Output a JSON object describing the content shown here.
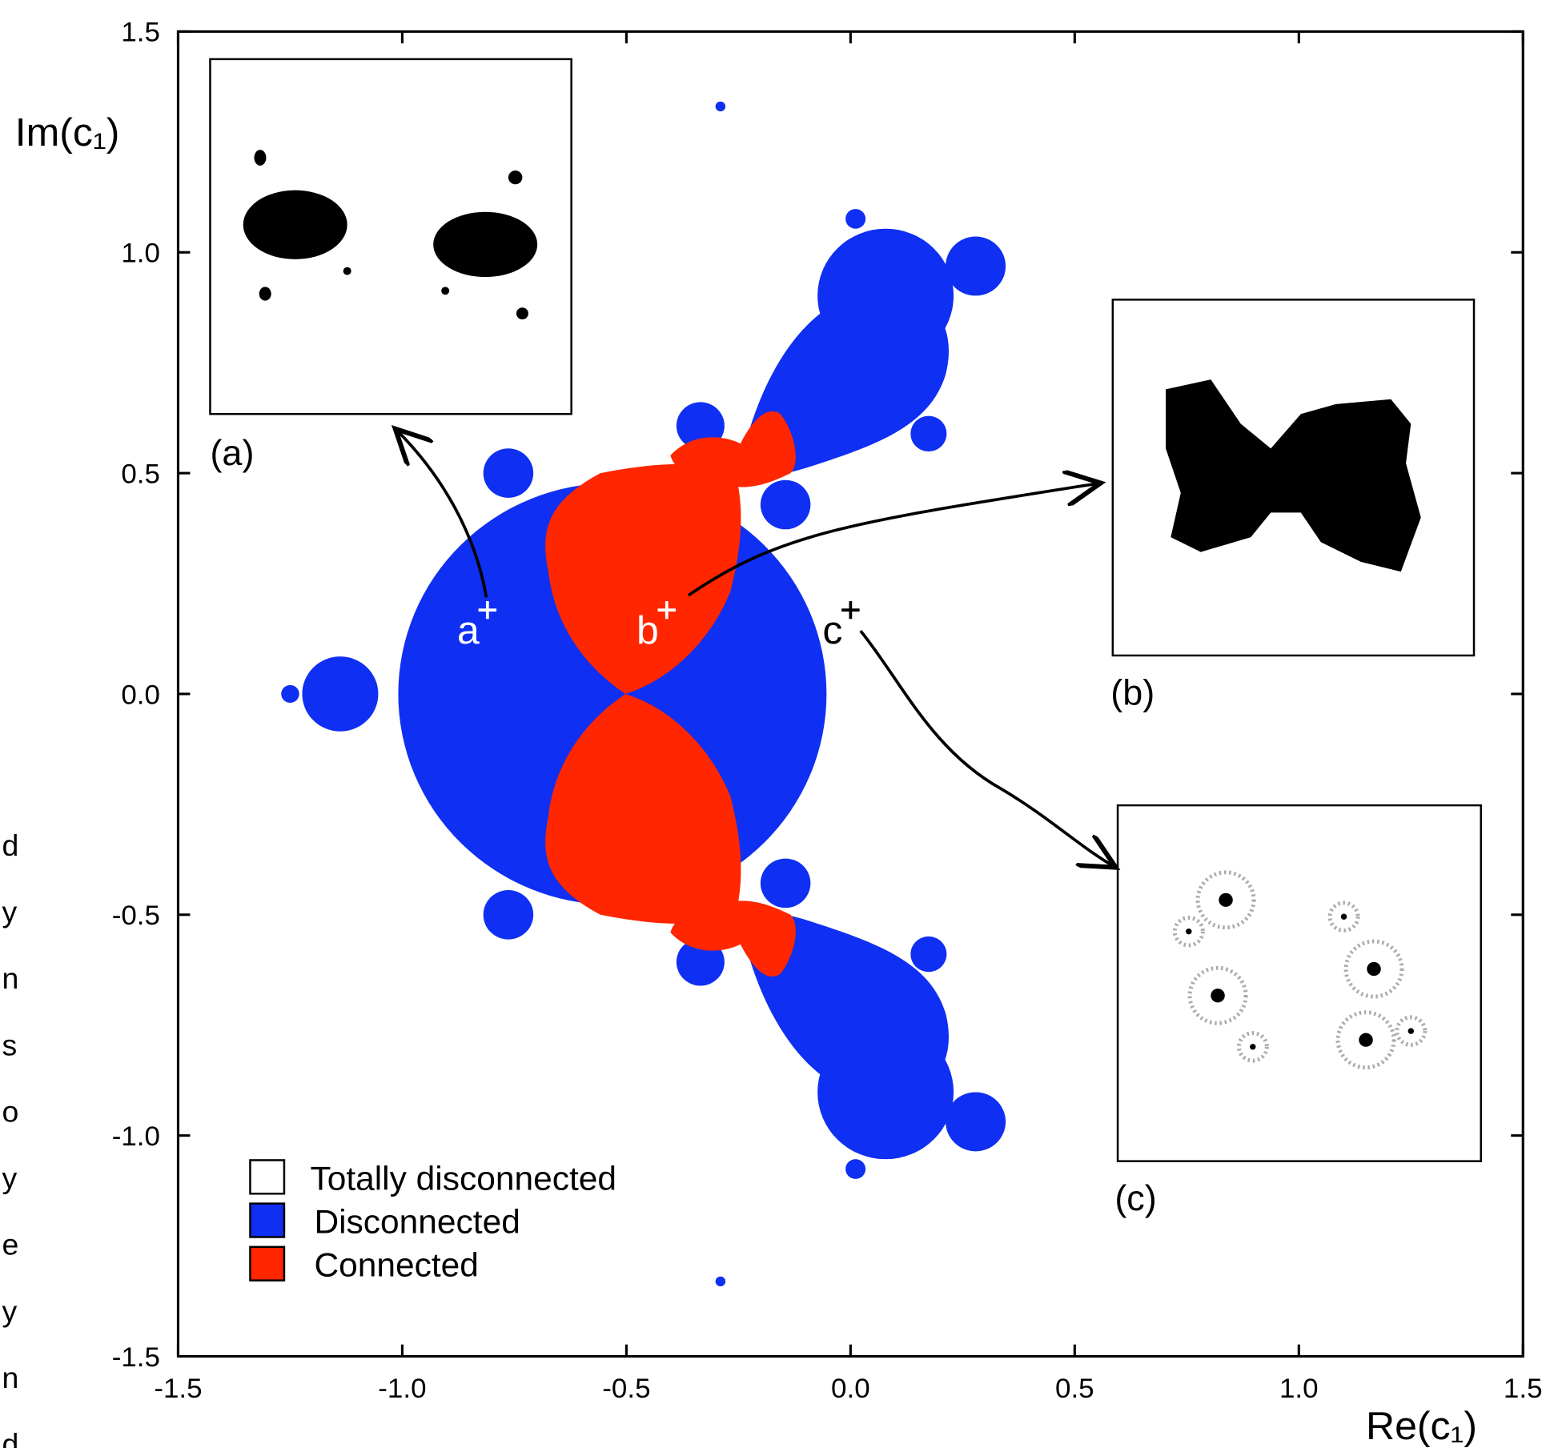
{
  "chart_data": {
    "type": "region",
    "xlabel": "Re(c₁)",
    "ylabel": "Im(c₁)",
    "xlim": [
      -1.5,
      1.5
    ],
    "ylim": [
      -1.5,
      1.5
    ],
    "xticks": [
      -1.5,
      {
        "value": -1.0,
        "label": "-1.0"
      },
      -0.5,
      {
        "value": 0.0,
        "label": "0.0"
      },
      0.5,
      {
        "value": 1.0,
        "label": "1.0"
      },
      1.5
    ],
    "yticks": [
      -1.5,
      {
        "value": -1.0,
        "label": "-1.0"
      },
      -0.5,
      {
        "value": 0.0,
        "label": "0.0"
      },
      0.5,
      {
        "value": 1.0,
        "label": "1.0"
      },
      1.5
    ],
    "regions": [
      {
        "name": "Totally disconnected",
        "color": "#ffffff"
      },
      {
        "name": "Disconnected",
        "color": "#0f2ff2"
      },
      {
        "name": "Connected",
        "color": "#ff2600"
      }
    ],
    "legend": "lower left",
    "points": {
      "labels": [
        "a",
        "b",
        "c"
      ],
      "x": [
        -0.81,
        -0.41,
        0.0
      ],
      "y": [
        0.19,
        0.19,
        0.19
      ]
    },
    "insets": [
      "(a)",
      "(b)",
      "(c)"
    ],
    "side_text": [
      "d",
      "y",
      "n",
      "s",
      "o",
      "y",
      "e",
      "y",
      "n",
      "d"
    ]
  }
}
